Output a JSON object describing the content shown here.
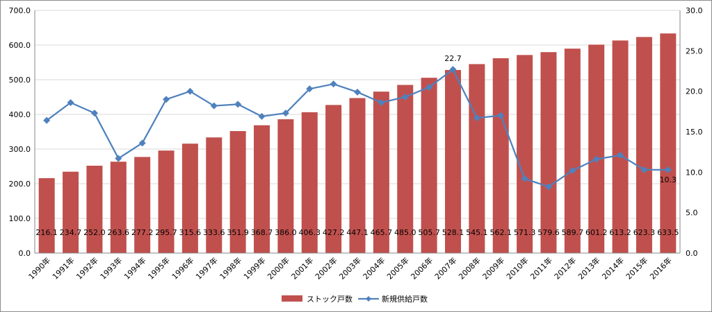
{
  "chart_data": {
    "type": "bar",
    "categories": [
      "1990年",
      "1991年",
      "1992年",
      "1993年",
      "1994年",
      "1995年",
      "1996年",
      "1997年",
      "1998年",
      "1999年",
      "2000年",
      "2001年",
      "2002年",
      "2003年",
      "2004年",
      "2005年",
      "2006年",
      "2007年",
      "2008年",
      "2009年",
      "2010年",
      "2011年",
      "2012年",
      "2013年",
      "2014年",
      "2015年",
      "2016年"
    ],
    "series": [
      {
        "name": "ストック戸数",
        "type": "bar",
        "axis": "left",
        "color": "#C0504D",
        "values": [
          216.1,
          234.7,
          252.0,
          263.6,
          277.2,
          295.7,
          315.6,
          333.6,
          351.9,
          368.7,
          386.0,
          406.3,
          427.2,
          447.1,
          465.7,
          485.0,
          505.7,
          528.1,
          545.1,
          562.1,
          571.3,
          579.6,
          589.7,
          601.2,
          613.2,
          623.3,
          633.5
        ],
        "labels": [
          "216.1",
          "234.7",
          "252.0",
          "263.6",
          "277.2",
          "295.7",
          "315.6",
          "333.6",
          "351.9",
          "368.7",
          "386.0",
          "406.3",
          "427.2",
          "447.1",
          "465.7",
          "485.0",
          "505.7",
          "528.1",
          "545.1",
          "562.1",
          "571.3",
          "579.6",
          "589.7",
          "601.2",
          "613.2",
          "623.3",
          "633.5"
        ]
      },
      {
        "name": "新規供給戸数",
        "type": "line",
        "axis": "right",
        "color": "#4F81BD",
        "values": [
          16.4,
          18.6,
          17.3,
          11.7,
          13.6,
          19.0,
          20.0,
          18.2,
          18.4,
          16.9,
          17.3,
          20.3,
          20.9,
          19.9,
          18.6,
          19.3,
          20.5,
          22.7,
          16.7,
          17.0,
          9.2,
          8.2,
          10.2,
          11.6,
          12.1,
          10.3,
          10.3
        ],
        "labels": {
          "17": "22.7",
          "26": "10.3"
        }
      }
    ],
    "y_left": {
      "min": 0,
      "max": 700,
      "ticks": [
        "0.0",
        "100.0",
        "200.0",
        "300.0",
        "400.0",
        "500.0",
        "600.0",
        "700.0"
      ]
    },
    "y_right": {
      "min": 0,
      "max": 30,
      "ticks": [
        "0.0",
        "5.0",
        "10.0",
        "15.0",
        "20.0",
        "25.0",
        "30.0"
      ]
    },
    "grid": true,
    "legend": "bottom"
  }
}
